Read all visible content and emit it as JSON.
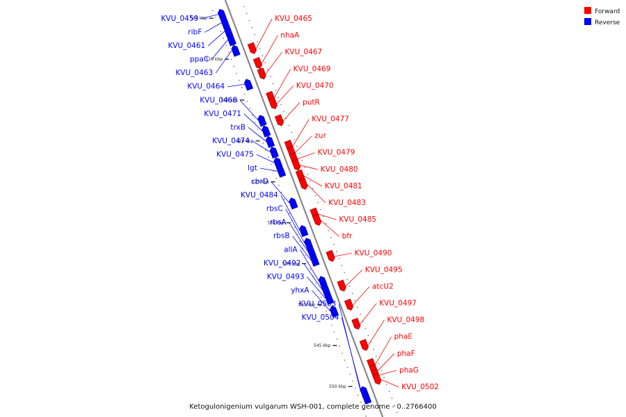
{
  "title": "Ketogulonigenium vulgarum WSH-001, complete genome - 0..2766400",
  "colors": {
    "forward": "#ff0000",
    "reverse": "#0000ff",
    "backbone": "#888888"
  },
  "legend": [
    {
      "key": "forward",
      "label": "Forward"
    },
    {
      "key": "reverse",
      "label": "Reverse"
    }
  ],
  "ticks": [
    "505 kbp",
    "510 kbp",
    "515 kbp",
    "520 kbp",
    "525 kbp",
    "530 kbp",
    "535 kbp",
    "540 kbp",
    "545 kbp",
    "550 kbp"
  ],
  "genes": [
    {
      "name": "KVU_0459",
      "strand": "reverse",
      "pos": 0.035
    },
    {
      "name": "ribF",
      "strand": "reverse",
      "pos": 0.055
    },
    {
      "name": "KVU_0461",
      "strand": "reverse",
      "pos": 0.075
    },
    {
      "name": "ppaC",
      "strand": "reverse",
      "pos": 0.095
    },
    {
      "name": "KVU_0463",
      "strand": "reverse",
      "pos": 0.12
    },
    {
      "name": "KVU_0465",
      "strand": "forward",
      "pos": 0.13
    },
    {
      "name": "nhaA",
      "strand": "forward",
      "pos": 0.165
    },
    {
      "name": "KVU_0467",
      "strand": "forward",
      "pos": 0.19
    },
    {
      "name": "KVU_0464",
      "strand": "reverse",
      "pos": 0.2
    },
    {
      "name": "KVU_0469",
      "strand": "forward",
      "pos": 0.245
    },
    {
      "name": "KVU_0470",
      "strand": "forward",
      "pos": 0.26
    },
    {
      "name": "KVU_0468",
      "strand": "reverse",
      "pos": 0.285
    },
    {
      "name": "putR",
      "strand": "forward",
      "pos": 0.3
    },
    {
      "name": "KVU_0471",
      "strand": "reverse",
      "pos": 0.31
    },
    {
      "name": "trxB",
      "strand": "reverse",
      "pos": 0.335
    },
    {
      "name": "KVU_0477",
      "strand": "forward",
      "pos": 0.36
    },
    {
      "name": "KVU_0474",
      "strand": "reverse",
      "pos": 0.36
    },
    {
      "name": "zur",
      "strand": "forward",
      "pos": 0.375
    },
    {
      "name": "KVU_0475",
      "strand": "reverse",
      "pos": 0.385
    },
    {
      "name": "KVU_0479",
      "strand": "forward",
      "pos": 0.39
    },
    {
      "name": "KVU_0480",
      "strand": "forward",
      "pos": 0.405
    },
    {
      "name": "lgt",
      "strand": "reverse",
      "pos": 0.405
    },
    {
      "name": "KVU_0481",
      "strand": "forward",
      "pos": 0.43
    },
    {
      "name": "KVU_0483",
      "strand": "forward",
      "pos": 0.45
    },
    {
      "name": "cbrD",
      "strand": "reverse",
      "pos": 0.48
    },
    {
      "name": "KVU_0485",
      "strand": "forward",
      "pos": 0.52
    },
    {
      "name": "bfr",
      "strand": "forward",
      "pos": 0.535
    },
    {
      "name": "KVU_0484",
      "strand": "reverse",
      "pos": 0.545
    },
    {
      "name": "rbsC",
      "strand": "reverse",
      "pos": 0.575
    },
    {
      "name": "rbsA",
      "strand": "reverse",
      "pos": 0.595
    },
    {
      "name": "rbsB",
      "strand": "reverse",
      "pos": 0.615
    },
    {
      "name": "KVU_0490",
      "strand": "forward",
      "pos": 0.62
    },
    {
      "name": "allA",
      "strand": "reverse",
      "pos": 0.665
    },
    {
      "name": "KVU_0495",
      "strand": "forward",
      "pos": 0.69
    },
    {
      "name": "KVU_0492",
      "strand": "reverse",
      "pos": 0.685
    },
    {
      "name": "KVU_0493",
      "strand": "reverse",
      "pos": 0.705
    },
    {
      "name": "atcU2",
      "strand": "forward",
      "pos": 0.735
    },
    {
      "name": "yhxA",
      "strand": "reverse",
      "pos": 0.735
    },
    {
      "name": "KVU_0497",
      "strand": "forward",
      "pos": 0.78
    },
    {
      "name": "KVU_0498",
      "strand": "forward",
      "pos": 0.83
    },
    {
      "name": "phaE",
      "strand": "forward",
      "pos": 0.875
    },
    {
      "name": "phaF",
      "strand": "forward",
      "pos": 0.89
    },
    {
      "name": "phaG",
      "strand": "forward",
      "pos": 0.9
    },
    {
      "name": "KVU_0502",
      "strand": "forward",
      "pos": 0.91
    },
    {
      "name": "KVU_0503",
      "strand": "reverse",
      "pos": 0.925
    },
    {
      "name": "KVU_0504",
      "strand": "reverse",
      "pos": 0.94
    }
  ]
}
